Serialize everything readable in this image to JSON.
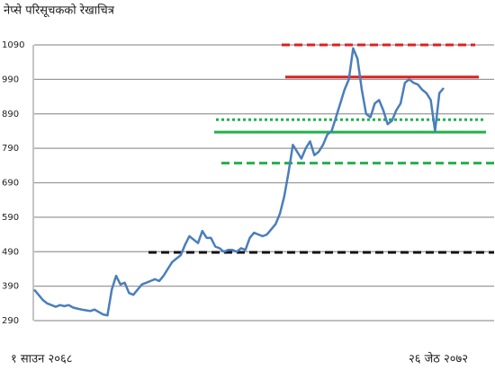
{
  "chart_data": {
    "type": "line",
    "title": "नेप्से परिसूचकको रेखाचित्र",
    "x_labels": [
      "१ साउन २०६८",
      "२६ जेठ २०७२"
    ],
    "series": [
      {
        "color": "#4a7ebb",
        "values": [
          380,
          365,
          350,
          340,
          335,
          330,
          335,
          332,
          335,
          328,
          325,
          322,
          320,
          318,
          322,
          315,
          308,
          305,
          380,
          420,
          395,
          400,
          370,
          365,
          380,
          395,
          400,
          405,
          410,
          405,
          420,
          440,
          460,
          470,
          480,
          510,
          535,
          525,
          515,
          550,
          530,
          530,
          505,
          500,
          490,
          495,
          495,
          490,
          500,
          495,
          530,
          545,
          540,
          535,
          540,
          555,
          570,
          600,
          650,
          720,
          800,
          780,
          760,
          790,
          810,
          770,
          780,
          800,
          830,
          840,
          880,
          920,
          960,
          990,
          1080,
          1050,
          960,
          890,
          880,
          920,
          930,
          900,
          860,
          870,
          900,
          920,
          980,
          990,
          980,
          975,
          960,
          950,
          930,
          840,
          950,
          965
        ]
      }
    ],
    "reference_lines": [
      {
        "value": 1090,
        "color": "#e02020",
        "style": "dashed"
      },
      {
        "value": 997,
        "color": "#e02020",
        "style": "solid"
      },
      {
        "value": 873,
        "color": "#22b14c",
        "style": "dotted"
      },
      {
        "value": 837,
        "color": "#22b14c",
        "style": "solid"
      },
      {
        "value": 747,
        "color": "#22b14c",
        "style": "dashed"
      },
      {
        "value": 488,
        "color": "#111111",
        "style": "dashed"
      }
    ],
    "ylim": [
      290,
      1090
    ],
    "yticks": [
      290,
      390,
      490,
      590,
      690,
      790,
      890,
      990,
      1090
    ],
    "grid": true
  }
}
